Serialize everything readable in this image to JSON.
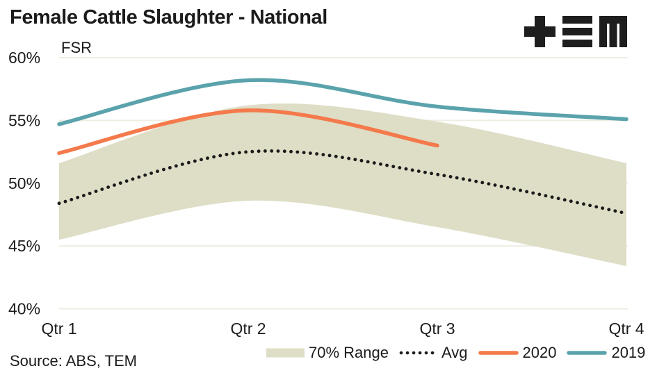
{
  "header": {
    "logo_name": "TEM"
  },
  "footer": {
    "source": "Source: ABS, TEM"
  },
  "colors": {
    "text": "#1b1b1b",
    "grid": "#eeede2",
    "background": "#ffffff",
    "band": "#deddc6",
    "avg": "#1b1b1b",
    "y2020": "#f4794b",
    "y2019": "#5ba3ac",
    "logo": "#1e1e1e"
  },
  "chart_data": {
    "type": "line",
    "title": "Female Cattle Slaughter - National",
    "axis_top_label": "FSR",
    "categories": [
      "Qtr 1",
      "Qtr 2",
      "Qtr 3",
      "Qtr 4"
    ],
    "xlabel": "",
    "ylabel": "FSR",
    "unit": "%",
    "ylim": [
      40,
      60
    ],
    "y_tick_step": 5,
    "y_tick_labels": [
      "60%",
      "55%",
      "50%",
      "45%",
      "40%"
    ],
    "grid": "horizontal",
    "legend_position": "bottom",
    "series": [
      {
        "name": "70% Range",
        "type": "range",
        "style": "area",
        "color": "#deddc6",
        "upper": [
          51.6,
          56.2,
          54.9,
          51.6
        ],
        "lower": [
          45.5,
          48.6,
          46.5,
          43.4
        ]
      },
      {
        "name": "Avg",
        "type": "line",
        "style": "dotted",
        "color": "#1b1b1b",
        "values": [
          48.4,
          52.5,
          50.7,
          47.6
        ]
      },
      {
        "name": "2020",
        "type": "line",
        "style": "solid",
        "color": "#f4794b",
        "values": [
          52.4,
          55.8,
          53.0,
          null
        ]
      },
      {
        "name": "2019",
        "type": "line",
        "style": "solid",
        "color": "#5ba3ac",
        "values": [
          54.7,
          58.2,
          56.1,
          55.1
        ]
      }
    ]
  }
}
